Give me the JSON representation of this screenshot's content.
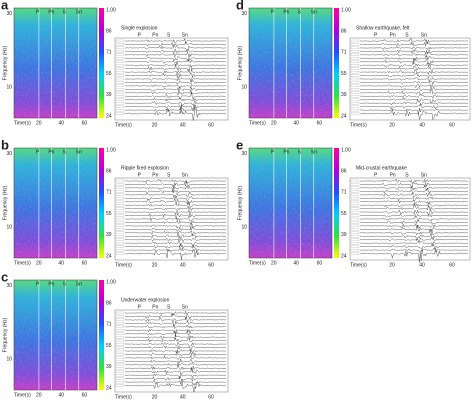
{
  "panels": [
    {
      "letter": "a",
      "title": "Single explosion",
      "frequency_label": "Frequency (Hz)",
      "frequency_ticks": [
        "30",
        "10"
      ],
      "colorbar_ticks": [
        "1.00",
        "86",
        "71",
        "55",
        "39",
        "24"
      ],
      "time_label": "Time(s)",
      "time_ticks": [
        "20",
        "40",
        "60"
      ],
      "phases": [
        "P",
        "Pn",
        "S",
        "Sn"
      ]
    },
    {
      "letter": "b",
      "title": "Ripple fired explosion",
      "frequency_label": "Frequency (Hz)",
      "frequency_ticks": [
        "30",
        "10"
      ],
      "colorbar_ticks": [
        "1.00",
        "86",
        "71",
        "55",
        "39",
        "24"
      ],
      "time_label": "Time(s)",
      "time_ticks": [
        "20",
        "40",
        "60"
      ],
      "phases": [
        "P",
        "Pn",
        "S",
        "Sn"
      ]
    },
    {
      "letter": "c",
      "title": "Underwater explosion",
      "frequency_label": "Frequency (Hz)",
      "frequency_ticks": [
        "30",
        "10"
      ],
      "colorbar_ticks": [
        "1.00",
        "86",
        "71",
        "55",
        "39",
        "24"
      ],
      "time_label": "Time(s)",
      "time_ticks": [
        "20",
        "40",
        "60"
      ],
      "phases": [
        "P",
        "Pn",
        "S",
        "Sn"
      ]
    },
    {
      "letter": "d",
      "title": "Shallow earthquake, felt",
      "frequency_label": "Frequency (Hz)",
      "frequency_ticks": [
        "30",
        "10"
      ],
      "colorbar_ticks": [
        "1.00",
        "86",
        "71",
        "55",
        "39",
        "24"
      ],
      "time_label": "Time(s)",
      "time_ticks": [
        "20",
        "40",
        "60"
      ],
      "phases": [
        "P",
        "Pn",
        "S",
        "Sn"
      ]
    },
    {
      "letter": "e",
      "title": "Mid-crustal earthquake",
      "frequency_label": "Frequency (Hz)",
      "frequency_ticks": [
        "30",
        "10"
      ],
      "colorbar_ticks": [
        "1.00",
        "86",
        "71",
        "55",
        "39",
        "24"
      ],
      "time_label": "Time(s)",
      "time_ticks": [
        "20",
        "40",
        "60"
      ],
      "phases": [
        "P",
        "Pn",
        "S",
        "Sn"
      ]
    }
  ]
}
